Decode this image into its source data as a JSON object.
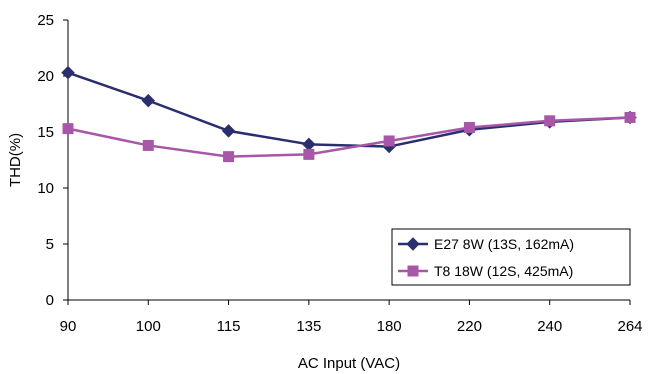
{
  "chart_data": {
    "type": "line",
    "title": "",
    "xlabel": "AC Input (VAC)",
    "ylabel": "THD(%)",
    "categories": [
      "90",
      "100",
      "115",
      "135",
      "180",
      "220",
      "240",
      "264"
    ],
    "ylim": [
      0,
      25
    ],
    "yticks": [
      "0",
      "5",
      "10",
      "15",
      "20",
      "25"
    ],
    "grid": false,
    "legend_position": "bottom-right",
    "series": [
      {
        "name": "E27 8W (13S, 162mA)",
        "color": "#2b2e6e",
        "marker": "diamond",
        "values": [
          20.3,
          17.8,
          15.1,
          13.9,
          13.7,
          15.2,
          15.9,
          16.3
        ]
      },
      {
        "name": "T8 18W (12S, 425mA)",
        "color": "#a857a8",
        "marker": "square",
        "values": [
          15.3,
          13.8,
          12.8,
          13.0,
          14.2,
          15.4,
          16.0,
          16.3
        ]
      }
    ]
  }
}
